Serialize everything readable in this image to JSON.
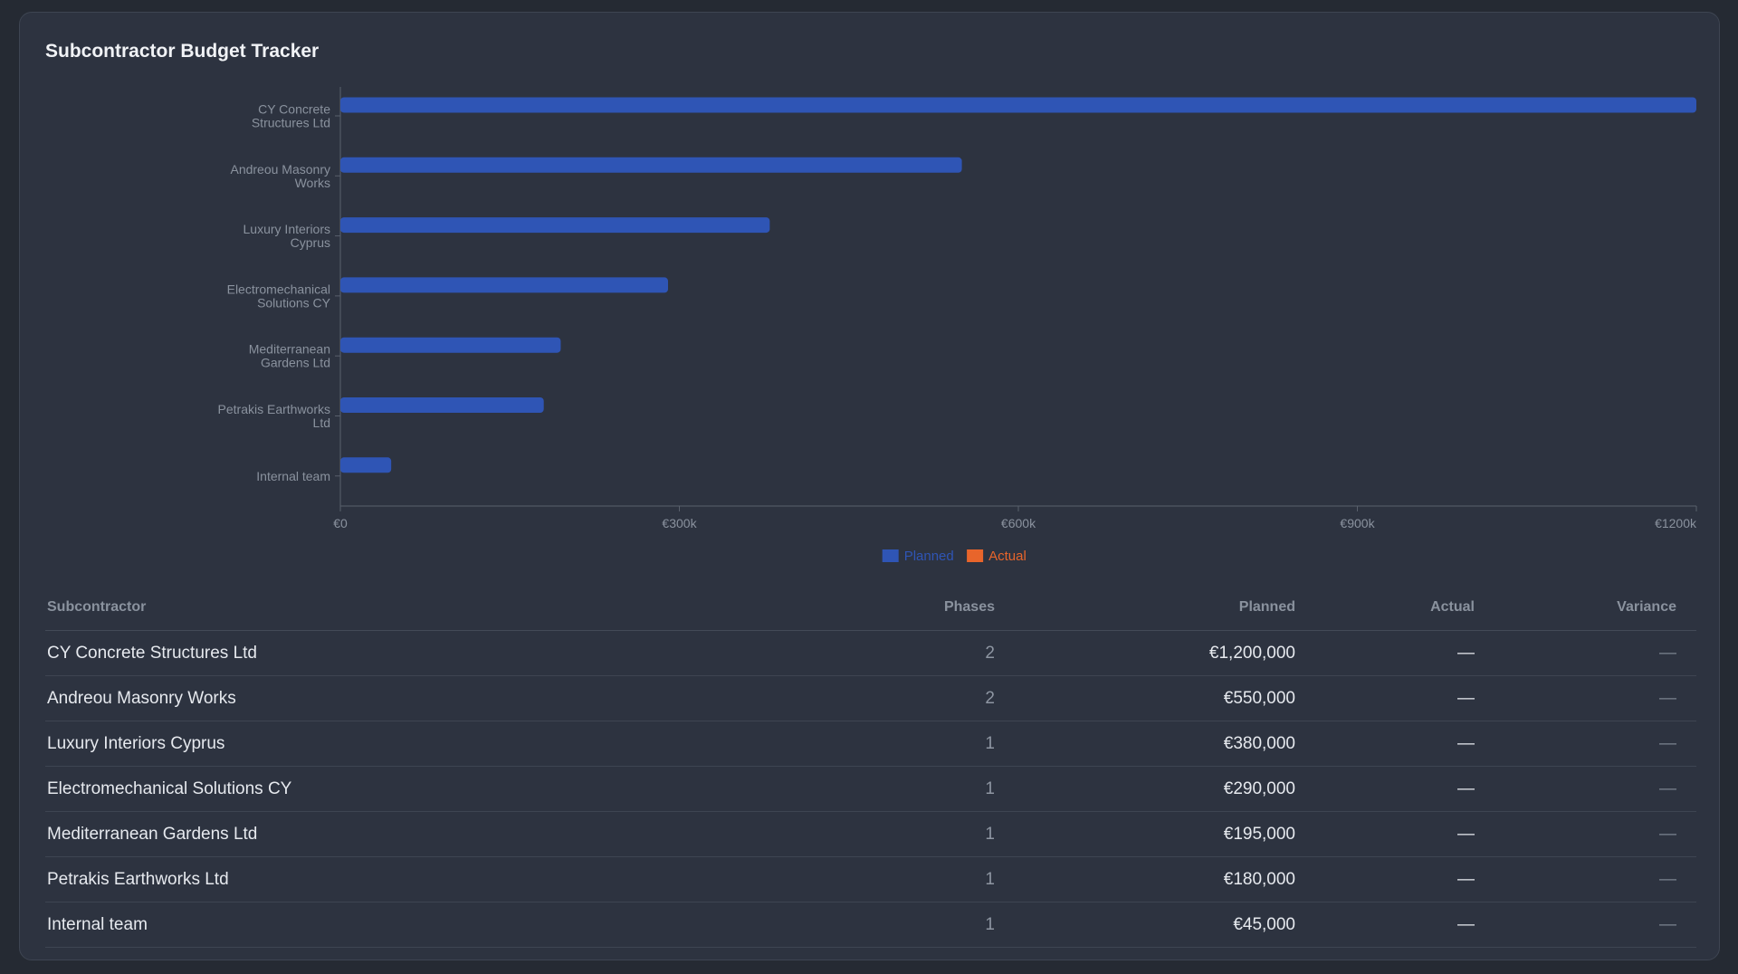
{
  "card": {
    "title": "Subcontractor Budget Tracker"
  },
  "colors": {
    "planned": "#2f55b5",
    "actual": "#e8652b",
    "background": "#2d3340",
    "axis": "#59606c"
  },
  "chart_data": {
    "type": "bar",
    "orientation": "horizontal",
    "categories": [
      [
        "CY Concrete",
        "Structures Ltd"
      ],
      [
        "Andreou Masonry",
        "Works"
      ],
      [
        "Luxury Interiors",
        "Cyprus"
      ],
      [
        "Electromechanical",
        "Solutions CY"
      ],
      [
        "Mediterranean",
        "Gardens Ltd"
      ],
      [
        "Petrakis Earthworks",
        "Ltd"
      ],
      [
        "Internal team"
      ]
    ],
    "series": [
      {
        "name": "Planned",
        "values": [
          1200000,
          550000,
          380000,
          290000,
          195000,
          180000,
          45000
        ]
      },
      {
        "name": "Actual",
        "values": [
          null,
          null,
          null,
          null,
          null,
          null,
          null
        ]
      }
    ],
    "xlim": [
      0,
      1200000
    ],
    "xticks": [
      0,
      300000,
      600000,
      900000,
      1200000
    ],
    "xtick_labels": [
      "€0",
      "€300k",
      "€600k",
      "€900k",
      "€1200k"
    ],
    "legend_position": "bottom-center",
    "grid": false
  },
  "table": {
    "headers": [
      "Subcontractor",
      "Phases",
      "Planned",
      "Actual",
      "Variance"
    ],
    "rows": [
      {
        "name": "CY Concrete Structures Ltd",
        "phases": "2",
        "planned": "€1,200,000",
        "actual": "—",
        "variance": "—"
      },
      {
        "name": "Andreou Masonry Works",
        "phases": "2",
        "planned": "€550,000",
        "actual": "—",
        "variance": "—"
      },
      {
        "name": "Luxury Interiors Cyprus",
        "phases": "1",
        "planned": "€380,000",
        "actual": "—",
        "variance": "—"
      },
      {
        "name": "Electromechanical Solutions CY",
        "phases": "1",
        "planned": "€290,000",
        "actual": "—",
        "variance": "—"
      },
      {
        "name": "Mediterranean Gardens Ltd",
        "phases": "1",
        "planned": "€195,000",
        "actual": "—",
        "variance": "—"
      },
      {
        "name": "Petrakis Earthworks Ltd",
        "phases": "1",
        "planned": "€180,000",
        "actual": "—",
        "variance": "—"
      },
      {
        "name": "Internal team",
        "phases": "1",
        "planned": "€45,000",
        "actual": "—",
        "variance": "—"
      }
    ]
  }
}
